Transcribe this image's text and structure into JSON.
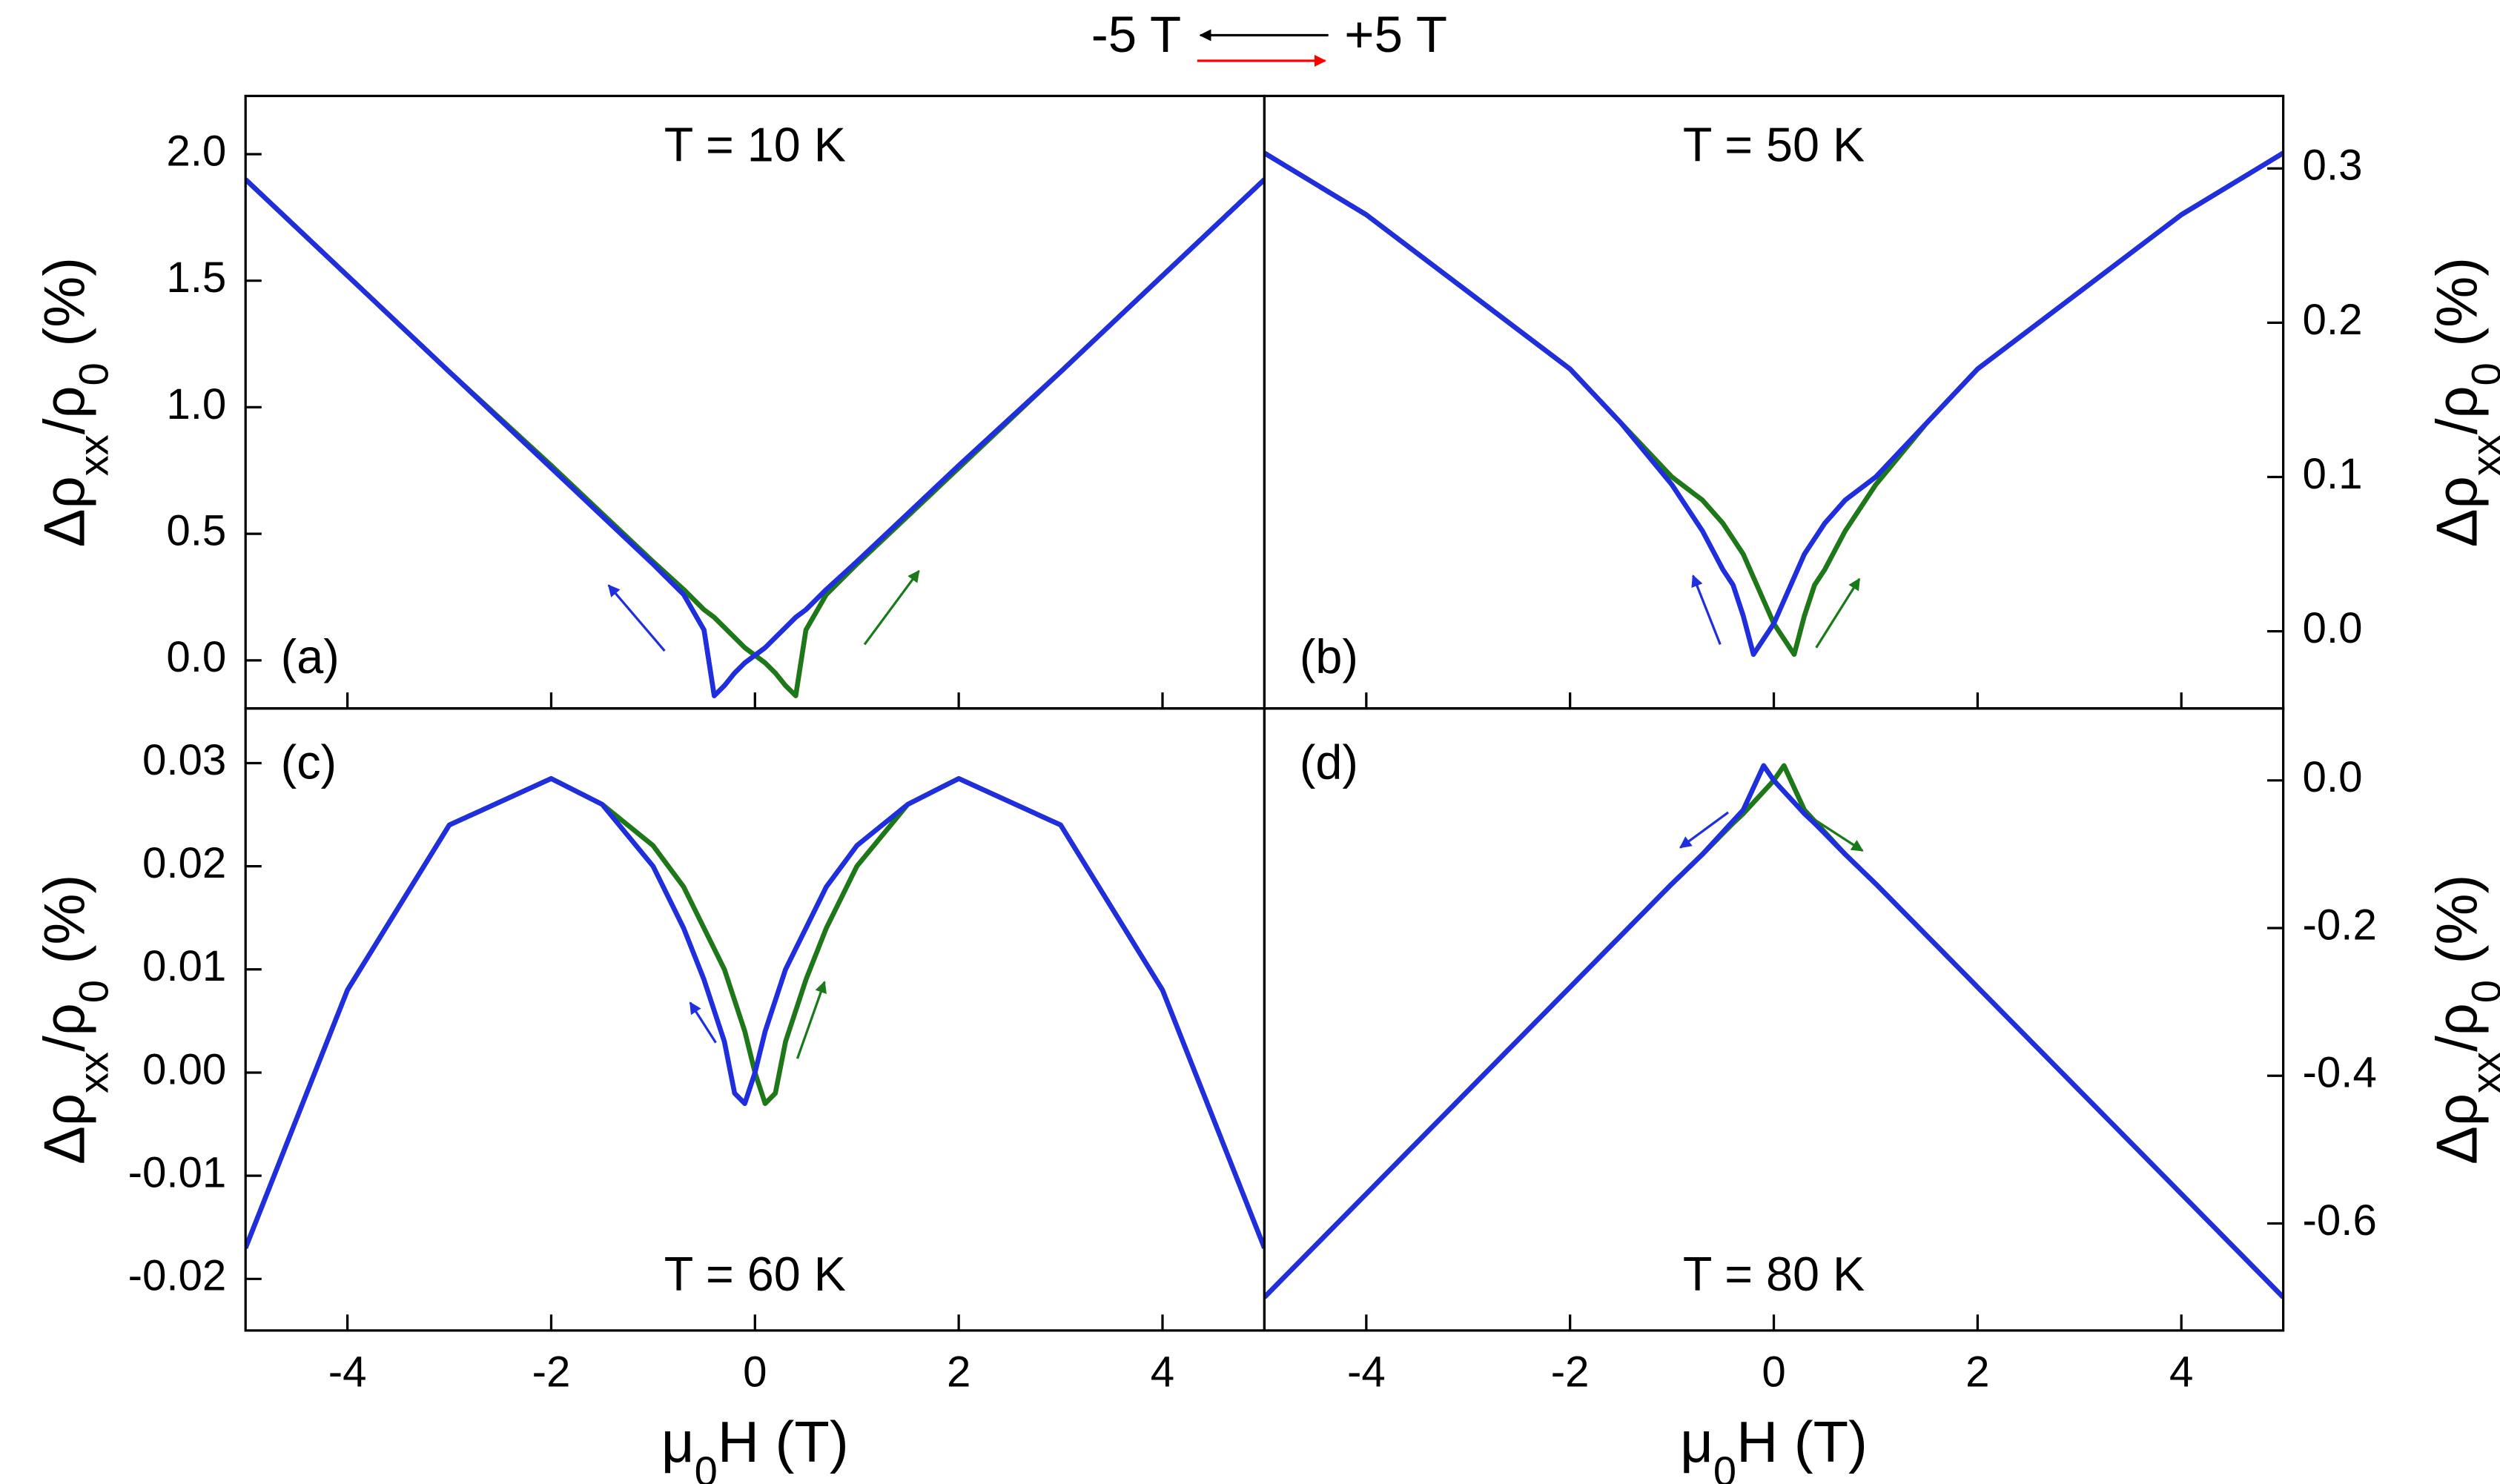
{
  "chart_data": [
    {
      "type": "line",
      "title": "T = 10 K",
      "title_position": "top",
      "panel_label": "(a)",
      "panel_label_position": "bottom",
      "yaxis": "left",
      "xlim": [
        -5,
        5
      ],
      "xticks": [
        -4,
        -2,
        0,
        2,
        4
      ],
      "xtick_labels": false,
      "ylim": [
        -0.19,
        2.23
      ],
      "yticks": [
        {
          "value": 0,
          "label": "0.0"
        },
        0.5,
        {
          "value": 1,
          "label": "1.0"
        },
        1.5,
        {
          "value": 2,
          "label": "2.0"
        }
      ],
      "ylabel": [
        "Δρ",
        "xx",
        "/ρ",
        "0",
        " (%)"
      ],
      "x": [
        -5,
        -4,
        -3,
        -2,
        -1.5,
        -1,
        -0.7,
        -0.5,
        -0.4,
        -0.3,
        -0.2,
        -0.1,
        0,
        0.1,
        0.2,
        0.3,
        0.4,
        0.5,
        0.7,
        1,
        1.5,
        2,
        3,
        4,
        5
      ],
      "series": [
        {
          "name": "-5 T",
          "color": "#000000",
          "values": [
            1.9,
            1.52,
            1.14,
            0.76,
            0.57,
            0.38,
            0.26,
            0.12,
            -0.14,
            -0.1,
            -0.05,
            -0.01,
            0.02,
            0.05,
            0.09,
            0.13,
            0.17,
            0.2,
            0.28,
            0.39,
            0.58,
            0.77,
            1.14,
            1.52,
            1.9
          ]
        },
        {
          "name": "+5 T",
          "color": "#ff0000",
          "values": [
            1.9,
            1.52,
            1.14,
            0.77,
            0.58,
            0.39,
            0.28,
            0.2,
            0.17,
            0.13,
            0.09,
            0.05,
            0.02,
            -0.01,
            -0.05,
            -0.1,
            -0.14,
            0.12,
            0.26,
            0.38,
            0.57,
            0.76,
            1.14,
            1.52,
            1.9
          ]
        },
        {
          "color": "#1a7a1a",
          "values": [
            1.9,
            1.52,
            1.14,
            0.77,
            0.58,
            0.39,
            0.28,
            0.2,
            0.17,
            0.13,
            0.09,
            0.05,
            0.02,
            -0.01,
            -0.05,
            -0.1,
            -0.14,
            0.12,
            0.26,
            0.38,
            0.57,
            0.76,
            1.14,
            1.52,
            1.9
          ]
        },
        {
          "color": "#1f2fe0",
          "values": [
            1.9,
            1.52,
            1.14,
            0.76,
            0.57,
            0.38,
            0.26,
            0.12,
            -0.14,
            -0.1,
            -0.05,
            -0.01,
            0.02,
            0.05,
            0.09,
            0.13,
            0.17,
            0.2,
            0.28,
            0.39,
            0.58,
            0.77,
            1.14,
            1.52,
            1.9
          ]
        }
      ]
    },
    {
      "type": "line",
      "title": "T = 50 K",
      "title_position": "top",
      "panel_label": "(b)",
      "panel_label_position": "bottom",
      "yaxis": "right",
      "xlim": [
        -5,
        5
      ],
      "xticks": [
        -4,
        -2,
        0,
        2,
        4
      ],
      "xtick_labels": false,
      "ylim": [
        -0.05,
        0.347
      ],
      "yticks": [
        {
          "value": 0,
          "label": "0.0"
        },
        0.1,
        0.2,
        0.3
      ],
      "ylabel": [
        "Δρ",
        "xx",
        "/ρ",
        "0",
        " (%)"
      ],
      "x": [
        -5,
        -4,
        -3,
        -2,
        -1.5,
        -1,
        -0.7,
        -0.5,
        -0.4,
        -0.3,
        -0.2,
        -0.1,
        0,
        0.1,
        0.2,
        0.3,
        0.4,
        0.5,
        0.7,
        1,
        1.5,
        2,
        3,
        4,
        5
      ],
      "series": [
        {
          "color": "#000000",
          "values": [
            0.31,
            0.27,
            0.22,
            0.17,
            0.135,
            0.095,
            0.065,
            0.04,
            0.03,
            0.01,
            -0.015,
            -0.005,
            0.005,
            0.02,
            0.035,
            0.05,
            0.06,
            0.07,
            0.085,
            0.1,
            0.135,
            0.17,
            0.22,
            0.27,
            0.31
          ]
        },
        {
          "color": "#ff0000",
          "values": [
            0.31,
            0.27,
            0.22,
            0.17,
            0.135,
            0.1,
            0.085,
            0.07,
            0.06,
            0.05,
            0.035,
            0.02,
            0.005,
            -0.005,
            -0.015,
            0.01,
            0.03,
            0.04,
            0.065,
            0.095,
            0.135,
            0.17,
            0.22,
            0.27,
            0.31
          ]
        },
        {
          "color": "#1a7a1a",
          "values": [
            0.31,
            0.27,
            0.22,
            0.17,
            0.135,
            0.1,
            0.085,
            0.07,
            0.06,
            0.05,
            0.035,
            0.02,
            0.005,
            -0.005,
            -0.015,
            0.01,
            0.03,
            0.04,
            0.065,
            0.095,
            0.135,
            0.17,
            0.22,
            0.27,
            0.31
          ]
        },
        {
          "color": "#1f2fe0",
          "values": [
            0.31,
            0.27,
            0.22,
            0.17,
            0.135,
            0.095,
            0.065,
            0.04,
            0.03,
            0.01,
            -0.015,
            -0.005,
            0.005,
            0.02,
            0.035,
            0.05,
            0.06,
            0.07,
            0.085,
            0.1,
            0.135,
            0.17,
            0.22,
            0.27,
            0.31
          ]
        }
      ]
    },
    {
      "type": "line",
      "title": "T = 60 K",
      "title_position": "bottom",
      "panel_label": "(c)",
      "panel_label_position": "top",
      "yaxis": "left",
      "xlim": [
        -5,
        5
      ],
      "xticks": [
        -4,
        -2,
        0,
        2,
        4
      ],
      "xtick_labels": true,
      "xlabel": [
        "μ",
        "0",
        "H (T)"
      ],
      "ylim": [
        -0.025,
        0.0353
      ],
      "yticks": [
        -0.02,
        -0.01,
        {
          "value": 0,
          "label": "0.00"
        },
        0.01,
        0.02,
        0.03
      ],
      "ylabel": [
        "Δρ",
        "xx",
        "/ρ",
        "0",
        " (%)"
      ],
      "x": [
        -5,
        -4,
        -3,
        -2,
        -1.5,
        -1,
        -0.7,
        -0.5,
        -0.4,
        -0.3,
        -0.2,
        -0.1,
        0,
        0.1,
        0.2,
        0.3,
        0.4,
        0.5,
        0.7,
        1,
        1.5,
        2,
        3,
        4,
        5
      ],
      "series": [
        {
          "color": "#000000",
          "values": [
            -0.017,
            0.008,
            0.024,
            0.0285,
            0.026,
            0.02,
            0.014,
            0.009,
            0.006,
            0.003,
            -0.002,
            -0.003,
            0.0,
            0.004,
            0.007,
            0.01,
            0.012,
            0.014,
            0.018,
            0.022,
            0.026,
            0.0285,
            0.024,
            0.008,
            -0.017
          ]
        },
        {
          "color": "#ff0000",
          "values": [
            -0.017,
            0.008,
            0.024,
            0.0285,
            0.026,
            0.022,
            0.018,
            0.014,
            0.012,
            0.01,
            0.007,
            0.004,
            0.0,
            -0.003,
            -0.002,
            0.003,
            0.006,
            0.009,
            0.014,
            0.02,
            0.026,
            0.0285,
            0.024,
            0.008,
            -0.017
          ]
        },
        {
          "color": "#1a7a1a",
          "values": [
            -0.017,
            0.008,
            0.024,
            0.0285,
            0.026,
            0.022,
            0.018,
            0.014,
            0.012,
            0.01,
            0.007,
            0.004,
            0.0,
            -0.003,
            -0.002,
            0.003,
            0.006,
            0.009,
            0.014,
            0.02,
            0.026,
            0.0285,
            0.024,
            0.008,
            -0.017
          ]
        },
        {
          "color": "#1f2fe0",
          "values": [
            -0.017,
            0.008,
            0.024,
            0.0285,
            0.026,
            0.02,
            0.014,
            0.009,
            0.006,
            0.003,
            -0.002,
            -0.003,
            0.0,
            0.004,
            0.007,
            0.01,
            0.012,
            0.014,
            0.018,
            0.022,
            0.026,
            0.0285,
            0.024,
            0.008,
            -0.017
          ]
        }
      ]
    },
    {
      "type": "line",
      "title": "T = 80 K",
      "title_position": "bottom",
      "panel_label": "(d)",
      "panel_label_position": "top",
      "yaxis": "right",
      "xlim": [
        -5,
        5
      ],
      "xticks": [
        -4,
        -2,
        0,
        2,
        4
      ],
      "xtick_labels": true,
      "xlabel": [
        "μ",
        "0",
        "H (T)"
      ],
      "ylim": [
        -0.745,
        0.0975
      ],
      "yticks": [
        -0.6,
        -0.4,
        -0.2,
        {
          "value": 0,
          "label": "0.0"
        }
      ],
      "ylabel": [
        "Δρ",
        "xx",
        "/ρ",
        "0",
        " (%)"
      ],
      "x": [
        -5,
        -4,
        -3,
        -2,
        -1.5,
        -1,
        -0.7,
        -0.5,
        -0.4,
        -0.3,
        -0.2,
        -0.1,
        0,
        0.1,
        0.2,
        0.3,
        0.4,
        0.5,
        0.7,
        1,
        1.5,
        2,
        3,
        4,
        5
      ],
      "series": [
        {
          "color": "#000000",
          "values": [
            -0.7,
            -0.56,
            -0.42,
            -0.28,
            -0.21,
            -0.14,
            -0.1,
            -0.07,
            -0.055,
            -0.04,
            -0.01,
            0.02,
            0.0,
            -0.015,
            -0.03,
            -0.045,
            -0.058,
            -0.072,
            -0.1,
            -0.14,
            -0.21,
            -0.28,
            -0.42,
            -0.56,
            -0.7
          ]
        },
        {
          "color": "#ff0000",
          "values": [
            -0.7,
            -0.56,
            -0.42,
            -0.28,
            -0.21,
            -0.14,
            -0.1,
            -0.072,
            -0.058,
            -0.045,
            -0.03,
            -0.015,
            0.0,
            0.02,
            -0.01,
            -0.04,
            -0.055,
            -0.07,
            -0.1,
            -0.14,
            -0.21,
            -0.28,
            -0.42,
            -0.56,
            -0.7
          ]
        },
        {
          "color": "#1a7a1a",
          "values": [
            -0.7,
            -0.56,
            -0.42,
            -0.28,
            -0.21,
            -0.14,
            -0.1,
            -0.072,
            -0.058,
            -0.045,
            -0.03,
            -0.015,
            0.0,
            0.02,
            -0.01,
            -0.04,
            -0.055,
            -0.07,
            -0.1,
            -0.14,
            -0.21,
            -0.28,
            -0.42,
            -0.56,
            -0.7
          ]
        },
        {
          "color": "#1f2fe0",
          "values": [
            -0.7,
            -0.56,
            -0.42,
            -0.28,
            -0.21,
            -0.14,
            -0.1,
            -0.07,
            -0.055,
            -0.04,
            -0.01,
            0.02,
            0.0,
            -0.015,
            -0.03,
            -0.045,
            -0.058,
            -0.072,
            -0.1,
            -0.14,
            -0.21,
            -0.28,
            -0.42,
            -0.56,
            -0.7
          ]
        }
      ]
    }
  ]
}
